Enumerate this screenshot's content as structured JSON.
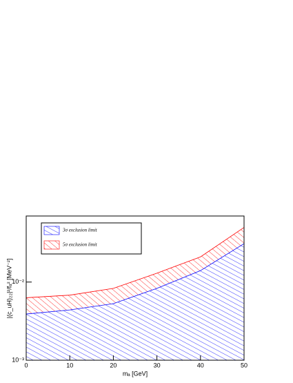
{
  "chart_data": {
    "type": "hatched-band",
    "x_label": "mₐ [GeV]",
    "y_label": "|(c_uH)₂₂|²/fₐ² [MeV⁻²]",
    "x": [
      0,
      10,
      20,
      30,
      40,
      50
    ],
    "series": [
      {
        "name": "3σ exclusion limit",
        "color": "#0000ff",
        "values": [
          0.0039,
          0.0044,
          0.0053,
          0.0083,
          0.014,
          0.031
        ]
      },
      {
        "name": "5σ exclusion limit",
        "color": "#ff0000",
        "values": [
          0.0063,
          0.0068,
          0.0083,
          0.013,
          0.021,
          0.05
        ]
      }
    ],
    "xlim": [
      0,
      50
    ],
    "xticks": [
      0,
      10,
      20,
      30,
      40,
      50
    ],
    "ylim": [
      0.001,
      0.07
    ],
    "yticks": [
      {
        "value": 0.001,
        "label": "10⁻³"
      },
      {
        "value": 0.01,
        "label": "10⁻²"
      }
    ],
    "ylog": true
  }
}
